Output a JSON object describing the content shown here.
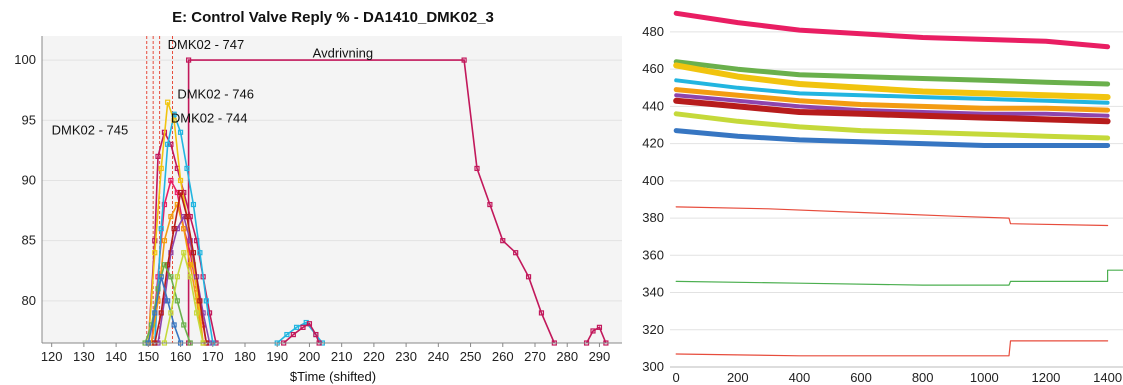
{
  "colors": {
    "plot_bg_left": "#f4f4f4",
    "grid": "#e2e2e2",
    "magenta": "#c2185b",
    "pink": "#e91e63",
    "green": "#6ab04c",
    "yellow": "#f1c40f",
    "cyan": "#22b5e0",
    "orange": "#f39c12",
    "darkred": "#b71c1c",
    "purple": "#8e44ad",
    "lime": "#c5d93a",
    "blue": "#3776c2",
    "red_thin": "#e74c3c",
    "green_thin": "#4caf50"
  },
  "chart_data": [
    {
      "type": "line",
      "title": "E: Control Valve Reply % - DA1410_DMK02_3",
      "xlabel": "$Time (shifted)",
      "ylabel": "",
      "xlim": [
        117,
        297
      ],
      "ylim": [
        76.5,
        102
      ],
      "x_ticks": [
        120,
        130,
        140,
        150,
        160,
        170,
        180,
        190,
        200,
        210,
        220,
        230,
        240,
        250,
        260,
        270,
        280,
        290
      ],
      "y_ticks": [
        80,
        85,
        90,
        95,
        100
      ],
      "annotations": [
        {
          "text": "DMK02 - 747",
          "x": 156,
          "y": 100.9
        },
        {
          "text": "Avdrivning",
          "x": 201,
          "y": 100.2
        },
        {
          "text": "DMK02 - 746",
          "x": 159,
          "y": 96.8
        },
        {
          "text": "DMK02 - 744",
          "x": 157,
          "y": 94.8
        },
        {
          "text": "DMK02 - 745",
          "x": 120,
          "y": 93.8
        }
      ],
      "series": [
        {
          "color": "magenta",
          "points": [
            [
              162.5,
              76.5
            ],
            [
              162.5,
              100
            ],
            [
              248,
              100
            ],
            [
              252,
              91
            ],
            [
              256,
              88
            ],
            [
              260,
              85
            ],
            [
              264,
              84
            ],
            [
              268,
              82
            ],
            [
              272,
              79
            ],
            [
              276,
              76.5
            ]
          ]
        },
        {
          "color": "magenta",
          "points": [
            [
              150,
              76.5
            ],
            [
              152,
              85
            ],
            [
              153,
              92
            ],
            [
              155,
              94
            ],
            [
              157,
              93
            ],
            [
              159,
              91
            ],
            [
              161,
              89
            ],
            [
              163,
              87
            ],
            [
              165,
              85
            ],
            [
              167,
              82
            ],
            [
              169,
              79
            ],
            [
              171,
              76.5
            ]
          ]
        },
        {
          "color": "pink",
          "points": [
            [
              151,
              76.5
            ],
            [
              153,
              82
            ],
            [
              155,
              88
            ],
            [
              157,
              90
            ],
            [
              159,
              89
            ],
            [
              161,
              86
            ],
            [
              163,
              84
            ],
            [
              165,
              81
            ],
            [
              167,
              78
            ],
            [
              168,
              76.5
            ]
          ]
        },
        {
          "color": "cyan",
          "points": [
            [
              152,
              76.5
            ],
            [
              154,
              86
            ],
            [
              156,
              93
            ],
            [
              158,
              95.5
            ],
            [
              160,
              94
            ],
            [
              162,
              91
            ],
            [
              164,
              88
            ],
            [
              166,
              84
            ],
            [
              168,
              80
            ],
            [
              170,
              76.5
            ]
          ]
        },
        {
          "color": "yellow",
          "points": [
            [
              150,
              76.5
            ],
            [
              152,
              84
            ],
            [
              154,
              91
            ],
            [
              156,
              96.5
            ],
            [
              158,
              95
            ],
            [
              160,
              90
            ],
            [
              162,
              87
            ],
            [
              164,
              83
            ],
            [
              166,
              79
            ],
            [
              167,
              76.5
            ]
          ]
        },
        {
          "color": "orange",
          "points": [
            [
              151,
              76.5
            ],
            [
              153,
              80
            ],
            [
              155,
              85
            ],
            [
              157,
              87
            ],
            [
              159,
              88
            ],
            [
              161,
              86
            ],
            [
              163,
              83
            ],
            [
              165,
              80
            ],
            [
              167,
              76.5
            ]
          ]
        },
        {
          "color": "purple",
          "points": [
            [
              153,
              76.5
            ],
            [
              155,
              80
            ],
            [
              157,
              84
            ],
            [
              159,
              86
            ],
            [
              161,
              87
            ],
            [
              163,
              85
            ],
            [
              165,
              82
            ],
            [
              167,
              79
            ],
            [
              169,
              76.5
            ]
          ]
        },
        {
          "color": "darkred",
          "points": [
            [
              152,
              76.5
            ],
            [
              154,
              79
            ],
            [
              156,
              83
            ],
            [
              158,
              86
            ],
            [
              160,
              89
            ],
            [
              162,
              87
            ],
            [
              164,
              84
            ],
            [
              166,
              80
            ],
            [
              168,
              76.5
            ]
          ]
        },
        {
          "color": "green",
          "points": [
            [
              149,
              76.5
            ],
            [
              151,
              78
            ],
            [
              153,
              81
            ],
            [
              155,
              83
            ],
            [
              157,
              82
            ],
            [
              159,
              80
            ],
            [
              161,
              78
            ],
            [
              163,
              76.5
            ]
          ]
        },
        {
          "color": "blue",
          "points": [
            [
              150,
              76.5
            ],
            [
              152,
              79
            ],
            [
              154,
              82
            ],
            [
              156,
              80
            ],
            [
              158,
              78
            ],
            [
              160,
              76.5
            ]
          ]
        },
        {
          "color": "lime",
          "points": [
            [
              155,
              76.5
            ],
            [
              157,
              79
            ],
            [
              159,
              82
            ],
            [
              161,
              84
            ],
            [
              163,
              82
            ],
            [
              165,
              79
            ],
            [
              167,
              76.5
            ]
          ]
        },
        {
          "color": "cyan",
          "points": [
            [
              190,
              76.5
            ],
            [
              193,
              77.2
            ],
            [
              196,
              77.8
            ],
            [
              199,
              78.2
            ],
            [
              202,
              77.2
            ],
            [
              204,
              76.5
            ]
          ]
        },
        {
          "color": "magenta",
          "points": [
            [
              192,
              76.5
            ],
            [
              195,
              77.2
            ],
            [
              198,
              77.8
            ],
            [
              200,
              78.1
            ],
            [
              202,
              77.2
            ],
            [
              203,
              76.5
            ]
          ]
        },
        {
          "color": "magenta",
          "points": [
            [
              286,
              76.5
            ],
            [
              288,
              77.5
            ],
            [
              290,
              77.8
            ],
            [
              292,
              76.5
            ]
          ]
        }
      ],
      "vlines": [
        {
          "x": 149.5,
          "color": "red_thin"
        },
        {
          "x": 151.5,
          "color": "red_thin"
        },
        {
          "x": 153.5,
          "color": "red_thin"
        },
        {
          "x": 157.5,
          "color": "red_thin"
        }
      ]
    },
    {
      "type": "line",
      "title": "",
      "xlabel": "",
      "ylabel": "",
      "xlim": [
        -20,
        1450
      ],
      "ylim": [
        300,
        495
      ],
      "x_ticks": [
        0,
        200,
        400,
        600,
        800,
        1000,
        1200,
        1400
      ],
      "y_ticks": [
        300,
        320,
        340,
        360,
        380,
        400,
        420,
        440,
        460,
        480
      ],
      "series": [
        {
          "color": "pink",
          "width": 5,
          "points": [
            [
              0,
              490
            ],
            [
              200,
              485
            ],
            [
              400,
              481
            ],
            [
              600,
              479
            ],
            [
              800,
              477
            ],
            [
              1000,
              476
            ],
            [
              1200,
              475
            ],
            [
              1400,
              472
            ]
          ]
        },
        {
          "color": "green",
          "width": 5,
          "points": [
            [
              0,
              464
            ],
            [
              200,
              460
            ],
            [
              400,
              457
            ],
            [
              600,
              456
            ],
            [
              800,
              455
            ],
            [
              1000,
              454
            ],
            [
              1200,
              453
            ],
            [
              1400,
              452
            ]
          ]
        },
        {
          "color": "yellow",
          "width": 6,
          "points": [
            [
              0,
              462
            ],
            [
              200,
              456
            ],
            [
              400,
              452
            ],
            [
              600,
              450
            ],
            [
              800,
              448
            ],
            [
              1000,
              447
            ],
            [
              1200,
              446
            ],
            [
              1400,
              445
            ]
          ]
        },
        {
          "color": "cyan",
          "width": 4,
          "points": [
            [
              0,
              454
            ],
            [
              200,
              450
            ],
            [
              400,
              447
            ],
            [
              600,
              446
            ],
            [
              800,
              445
            ],
            [
              1000,
              444
            ],
            [
              1200,
              443
            ],
            [
              1400,
              442
            ]
          ]
        },
        {
          "color": "orange",
          "width": 5,
          "points": [
            [
              0,
              449
            ],
            [
              200,
              446
            ],
            [
              400,
              443
            ],
            [
              600,
              441
            ],
            [
              800,
              440
            ],
            [
              1000,
              439
            ],
            [
              1200,
              439
            ],
            [
              1400,
              438
            ]
          ]
        },
        {
          "color": "purple",
          "width": 4,
          "points": [
            [
              0,
              446
            ],
            [
              200,
              443
            ],
            [
              400,
              440
            ],
            [
              600,
              438
            ],
            [
              800,
              437
            ],
            [
              1000,
              436
            ],
            [
              1200,
              436
            ],
            [
              1400,
              435
            ]
          ]
        },
        {
          "color": "darkred",
          "width": 6,
          "points": [
            [
              0,
              443
            ],
            [
              200,
              440
            ],
            [
              400,
              437
            ],
            [
              600,
              436
            ],
            [
              800,
              435
            ],
            [
              1000,
              434
            ],
            [
              1200,
              433
            ],
            [
              1400,
              432
            ]
          ]
        },
        {
          "color": "lime",
          "width": 5,
          "points": [
            [
              0,
              436
            ],
            [
              200,
              432
            ],
            [
              400,
              429
            ],
            [
              600,
              427
            ],
            [
              800,
              426
            ],
            [
              1000,
              425
            ],
            [
              1200,
              424
            ],
            [
              1400,
              423
            ]
          ]
        },
        {
          "color": "blue",
          "width": 5,
          "points": [
            [
              0,
              427
            ],
            [
              200,
              424
            ],
            [
              400,
              422
            ],
            [
              600,
              421
            ],
            [
              800,
              420
            ],
            [
              1000,
              419
            ],
            [
              1200,
              419
            ],
            [
              1400,
              419
            ]
          ]
        },
        {
          "color": "red_thin",
          "width": 1.2,
          "points": [
            [
              0,
              386
            ],
            [
              300,
              385
            ],
            [
              600,
              383
            ],
            [
              900,
              381
            ],
            [
              1080,
              380
            ],
            [
              1085,
              377
            ],
            [
              1400,
              376
            ]
          ]
        },
        {
          "color": "green_thin",
          "width": 1.2,
          "points": [
            [
              0,
              346
            ],
            [
              400,
              345
            ],
            [
              800,
              344
            ],
            [
              1080,
              344
            ],
            [
              1085,
              346
            ],
            [
              1400,
              346
            ],
            [
              1400,
              352
            ],
            [
              1450,
              352
            ]
          ]
        },
        {
          "color": "red_thin",
          "width": 1.2,
          "points": [
            [
              0,
              307
            ],
            [
              400,
              306
            ],
            [
              800,
              306
            ],
            [
              1080,
              306
            ],
            [
              1085,
              314
            ],
            [
              1400,
              314
            ]
          ]
        }
      ]
    }
  ]
}
